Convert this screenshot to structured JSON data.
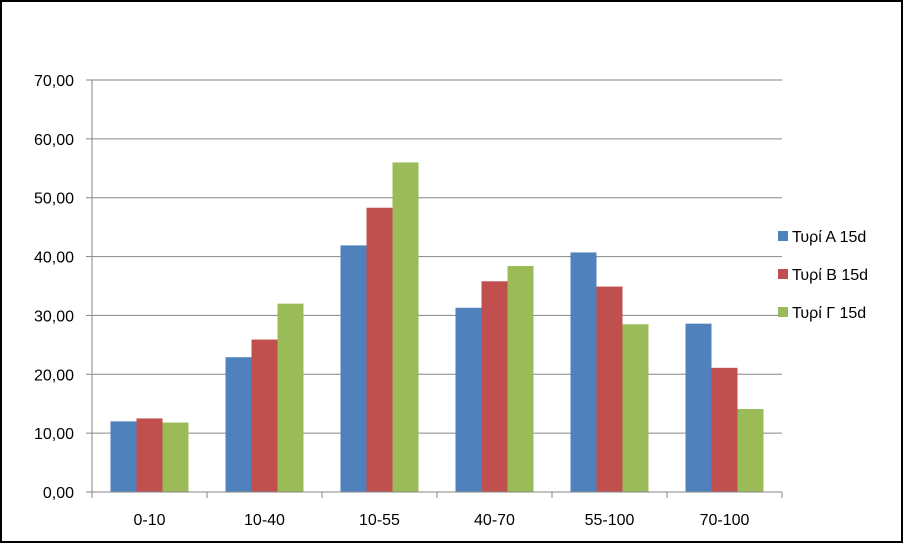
{
  "chart_data": {
    "type": "bar",
    "categories": [
      "0-10",
      "10-40",
      "10-55",
      "40-70",
      "55-100",
      "70-100"
    ],
    "series": [
      {
        "name": "Τυρί Α 15d",
        "color": "#4f81bd",
        "values": [
          12.0,
          22.9,
          41.9,
          31.3,
          40.7,
          28.6
        ]
      },
      {
        "name": "Τυρί Β 15d",
        "color": "#c0504d",
        "values": [
          12.5,
          25.9,
          48.3,
          35.8,
          34.9,
          21.1
        ]
      },
      {
        "name": "Τυρί Γ 15d",
        "color": "#9bbb59",
        "values": [
          11.8,
          32.0,
          56.0,
          38.4,
          28.5,
          14.1
        ]
      }
    ],
    "yticks": [
      "0,00",
      "10,00",
      "20,00",
      "30,00",
      "40,00",
      "50,00",
      "60,00",
      "70,00"
    ],
    "ylim": [
      0,
      70
    ],
    "grid": true,
    "legend_position": "right"
  }
}
